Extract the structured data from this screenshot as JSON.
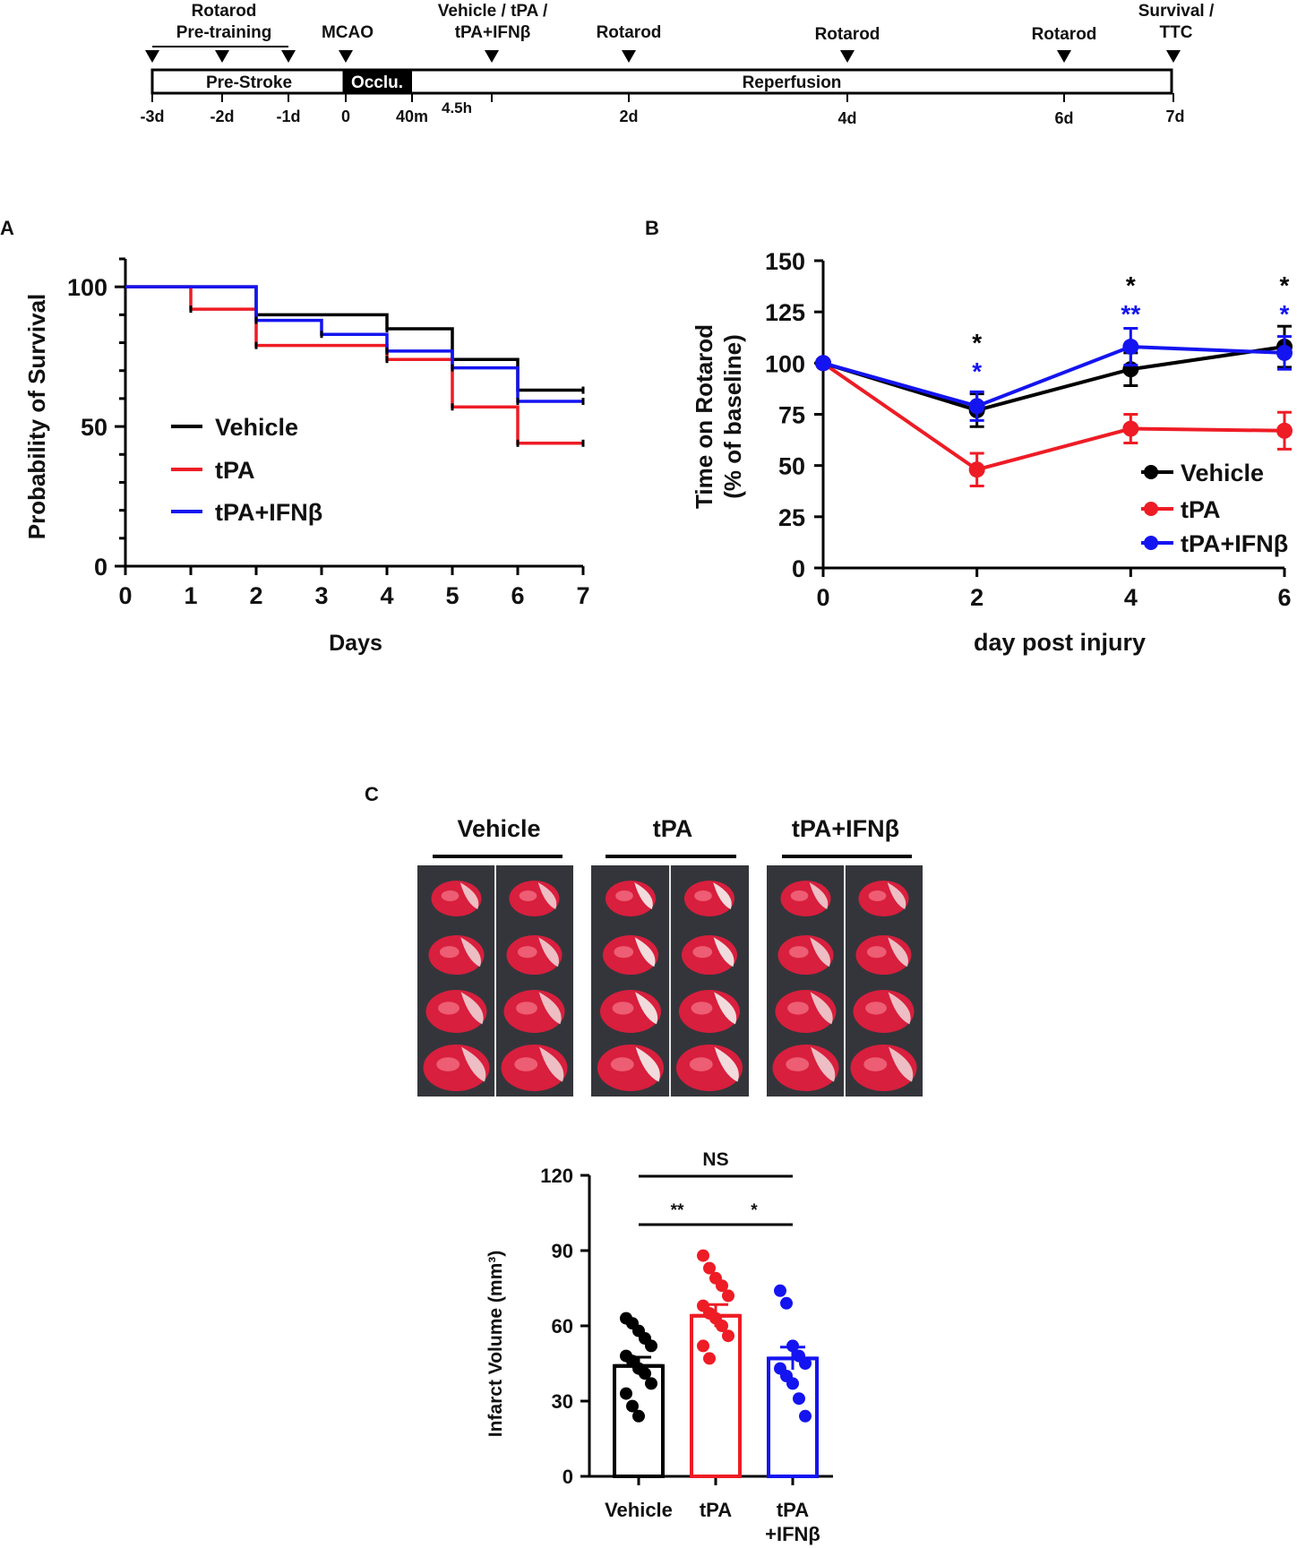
{
  "colors": {
    "vehicle": "#000000",
    "tpa": "#ee1c25",
    "ifn": "#1414f0"
  },
  "timeline": {
    "top_labels": [
      {
        "text": "Rotarod",
        "x": -3
      },
      {
        "text": "MCAO",
        "x": 0
      },
      {
        "text": "Vehicle / tPA /",
        "x": 4.5
      },
      {
        "text": "tPA+IFNβ",
        "x": 4.5
      },
      {
        "text": "Rotarod",
        "x": 48
      },
      {
        "text": "Rotarod",
        "x": 96
      },
      {
        "text": "Rotarod",
        "x": 144
      },
      {
        "text": "Survival /",
        "x": 168
      },
      {
        "text": "TTC",
        "x": 168
      }
    ],
    "pretraining": "Pre-training",
    "segments": {
      "prestroke": "Pre-Stroke",
      "occlusion": "Occlu.",
      "reperfusion": "Reperfusion"
    },
    "ticks": [
      "-3d",
      "-2d",
      "-1d",
      "0",
      "40m",
      "4.5h",
      "2d",
      "4d",
      "6d",
      "7d"
    ]
  },
  "panel_labels": {
    "a": "A",
    "b": "B",
    "c": "C"
  },
  "chart_data": [
    {
      "type": "line",
      "step": true,
      "title": "",
      "xlabel": "Days",
      "ylabel": "Probability  of Survival",
      "xlim": [
        0,
        7
      ],
      "ylim": [
        0,
        110
      ],
      "xticks": [
        "0",
        "1",
        "2",
        "3",
        "4",
        "5",
        "6",
        "7"
      ],
      "yticks": [
        "0",
        "50",
        "100"
      ],
      "legend": [
        "Vehicle",
        "tPA",
        "tPA+IFNβ"
      ],
      "series": [
        {
          "name": "Vehicle",
          "color": "#000000",
          "steps": [
            [
              0,
              100
            ],
            [
              2,
              90
            ],
            [
              4,
              85
            ],
            [
              5,
              74
            ],
            [
              6,
              63
            ],
            [
              7,
              63
            ]
          ]
        },
        {
          "name": "tPA",
          "color": "#ee1c25",
          "steps": [
            [
              0,
              100
            ],
            [
              1,
              92
            ],
            [
              2,
              79
            ],
            [
              4,
              74
            ],
            [
              5,
              57
            ],
            [
              6,
              44
            ],
            [
              7,
              44
            ]
          ]
        },
        {
          "name": "tPA+IFNβ",
          "color": "#1414f0",
          "steps": [
            [
              0,
              100
            ],
            [
              2,
              88
            ],
            [
              3,
              83
            ],
            [
              4,
              77
            ],
            [
              5,
              71
            ],
            [
              6,
              59
            ],
            [
              7,
              59
            ]
          ]
        }
      ]
    },
    {
      "type": "line",
      "title": "",
      "xlabel": "day post injury",
      "ylabel_line1": "Time on Rotarod",
      "ylabel_line2": "(% of baseline)",
      "xlim": [
        0,
        6
      ],
      "ylim": [
        0,
        150
      ],
      "xticks": [
        "0",
        "2",
        "4",
        "6"
      ],
      "yticks": [
        "0",
        "25",
        "50",
        "75",
        "100",
        "125",
        "150"
      ],
      "legend": [
        "Vehicle",
        "tPA",
        "tPA+IFNβ"
      ],
      "series": [
        {
          "name": "Vehicle",
          "color": "#000000",
          "x": [
            0,
            2,
            4,
            6
          ],
          "y": [
            100,
            77,
            97,
            108
          ],
          "err": [
            0,
            8,
            8,
            10
          ]
        },
        {
          "name": "tPA",
          "color": "#ee1c25",
          "x": [
            0,
            2,
            4,
            6
          ],
          "y": [
            100,
            48,
            68,
            67
          ],
          "err": [
            0,
            8,
            7,
            9
          ]
        },
        {
          "name": "tPA+IFNβ",
          "color": "#1414f0",
          "x": [
            0,
            2,
            4,
            6
          ],
          "y": [
            100,
            79,
            108,
            105
          ],
          "err": [
            0,
            7,
            9,
            8
          ]
        }
      ],
      "annotations": [
        {
          "x": 2,
          "y": 112,
          "text": "*",
          "color": "#000000"
        },
        {
          "x": 2,
          "y": 98,
          "text": "*",
          "color": "#1414f0"
        },
        {
          "x": 4,
          "y": 140,
          "text": "*",
          "color": "#000000"
        },
        {
          "x": 4,
          "y": 126,
          "text": "**",
          "color": "#1414f0"
        },
        {
          "x": 6,
          "y": 140,
          "text": "*",
          "color": "#000000"
        },
        {
          "x": 6,
          "y": 126,
          "text": "*",
          "color": "#1414f0"
        }
      ]
    },
    {
      "type": "bar",
      "title": "",
      "xlabel": "",
      "ylabel": "Infarct Volume (mm³)",
      "ylim": [
        0,
        120
      ],
      "yticks": [
        "0",
        "30",
        "60",
        "90",
        "120"
      ],
      "categories": [
        {
          "line1": "Vehicle",
          "line2": ""
        },
        {
          "line1": "tPA",
          "line2": ""
        },
        {
          "line1": "tPA",
          "line2": "+IFNβ"
        }
      ],
      "values": [
        44,
        64,
        47
      ],
      "sem": [
        3.5,
        4.5,
        4.5
      ],
      "points": [
        [
          63,
          61,
          58,
          55,
          52,
          48,
          46,
          43,
          41,
          37,
          33,
          28,
          24
        ],
        [
          88,
          83,
          79,
          76,
          72,
          68,
          65,
          63,
          60,
          56,
          52,
          47
        ],
        [
          74,
          69,
          52,
          48,
          45,
          43,
          40,
          37,
          31,
          24
        ]
      ],
      "significance": [
        {
          "from": 0,
          "to": 2,
          "text": "NS"
        },
        {
          "from": 0,
          "to": 1,
          "text": "**"
        },
        {
          "from": 1,
          "to": 2,
          "text": "*"
        }
      ]
    }
  ],
  "ttc": {
    "groups": [
      "Vehicle",
      "tPA",
      "tPA+IFNβ"
    ]
  }
}
